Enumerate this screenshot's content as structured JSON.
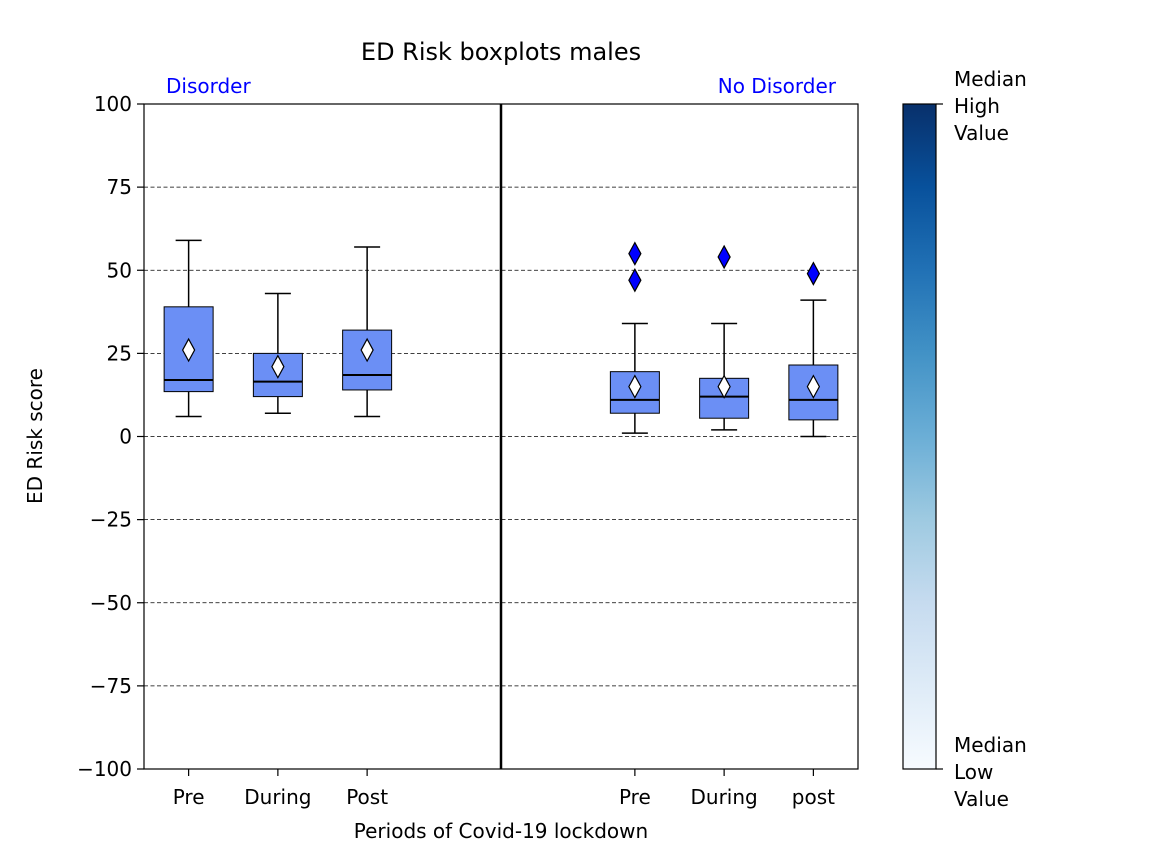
{
  "chart_data": {
    "type": "boxplot",
    "title": "ED Risk boxplots males",
    "xlabel": "Periods of Covid-19 lockdown",
    "ylabel": "ED Risk score",
    "ylim": [
      -100,
      100
    ],
    "yticks": [
      -100,
      -75,
      -50,
      -25,
      0,
      25,
      50,
      75,
      100
    ],
    "ytick_labels": [
      "−100",
      "−75",
      "−50",
      "−25",
      "0",
      "25",
      "50",
      "75",
      "100"
    ],
    "grid": "horizontal dashed",
    "box_color": "#6b8ff5",
    "outlier_color": "#0000ff",
    "group_label_color": "#0000ff",
    "groups": [
      {
        "label": "Disorder",
        "boxes": [
          {
            "label": "Pre",
            "whisker_low": 6,
            "q1": 13.5,
            "median": 17,
            "q3": 39,
            "whisker_high": 59,
            "mean": 26,
            "outliers": []
          },
          {
            "label": "During",
            "whisker_low": 7,
            "q1": 12,
            "median": 16.5,
            "q3": 25,
            "whisker_high": 43,
            "mean": 21,
            "outliers": []
          },
          {
            "label": "Post",
            "whisker_low": 6,
            "q1": 14,
            "median": 18.5,
            "q3": 32,
            "whisker_high": 57,
            "mean": 26,
            "outliers": []
          }
        ]
      },
      {
        "label": "No Disorder",
        "boxes": [
          {
            "label": "Pre",
            "whisker_low": 1,
            "q1": 7,
            "median": 11,
            "q3": 19.5,
            "whisker_high": 34,
            "mean": 15,
            "outliers": [
              47,
              55
            ]
          },
          {
            "label": "During",
            "whisker_low": 2,
            "q1": 5.5,
            "median": 12,
            "q3": 17.5,
            "whisker_high": 34,
            "mean": 15,
            "outliers": [
              54
            ]
          },
          {
            "label": "post",
            "whisker_low": 0,
            "q1": 5,
            "median": 11,
            "q3": 21.5,
            "whisker_high": 41,
            "mean": 15,
            "outliers": [
              49
            ]
          }
        ]
      }
    ],
    "colorbar": {
      "top_label": "Median\nHigh\nValue",
      "bottom_label": "Median\nLow\nValue",
      "color_high": "#08306b",
      "color_low": "#f7fbff",
      "colormap": "Blues"
    }
  }
}
